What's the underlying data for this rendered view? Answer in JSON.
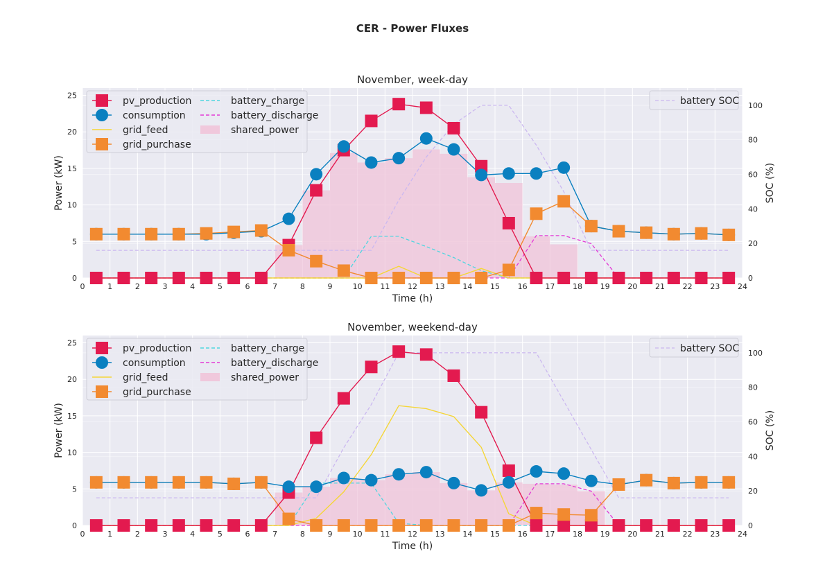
{
  "figure": {
    "suptitle": "CER - Power Fluxes"
  },
  "colors": {
    "pv_production": "#e31a4f",
    "consumption": "#0a80c0",
    "grid_feed": "#f5d637",
    "grid_purchase": "#f28a30",
    "battery_charge": "#4fd6e0",
    "battery_discharge": "#e33ad6",
    "shared_power": "#f0c8dc",
    "battery_soc": "#cbb8f0",
    "panel_bg": "#eaeaf2",
    "grid": "#ffffff"
  },
  "chart_data": [
    {
      "type": "line",
      "title": "November, week-day",
      "xlabel": "Time (h)",
      "ylabel": "Power (kW)",
      "y2label": "SOC (%)",
      "xlim": [
        0,
        24
      ],
      "ylim": [
        0,
        26
      ],
      "y2lim": [
        0,
        110
      ],
      "xticks": [
        "0",
        "1",
        "2",
        "3",
        "4",
        "5",
        "6",
        "7",
        "8",
        "9",
        "10",
        "11",
        "12",
        "13",
        "14",
        "15",
        "16",
        "17",
        "18",
        "19",
        "20",
        "21",
        "22",
        "23",
        "24"
      ],
      "yticks": [
        "0",
        "5",
        "10",
        "15",
        "20",
        "25"
      ],
      "y2ticks": [
        "0",
        "20",
        "40",
        "60",
        "80",
        "100"
      ],
      "grid": true,
      "legend_position": "top-left",
      "legend2_position": "top-right",
      "x": [
        0.5,
        1.5,
        2.5,
        3.5,
        4.5,
        5.5,
        6.5,
        7.5,
        8.5,
        9.5,
        10.5,
        11.5,
        12.5,
        13.5,
        14.5,
        15.5,
        16.5,
        17.5,
        18.5,
        19.5,
        20.5,
        21.5,
        22.5,
        23.5
      ],
      "series": [
        {
          "name": "pv_production",
          "style": "line+square",
          "values": [
            0,
            0,
            0,
            0,
            0,
            0,
            0,
            4.5,
            12.0,
            17.5,
            21.5,
            23.8,
            23.3,
            20.5,
            15.3,
            7.5,
            0,
            0,
            0,
            0,
            0,
            0,
            0,
            0
          ]
        },
        {
          "name": "consumption",
          "style": "line+circle",
          "values": [
            6.0,
            6.0,
            6.0,
            6.0,
            6.0,
            6.2,
            6.4,
            8.1,
            14.2,
            18.0,
            15.8,
            16.4,
            19.1,
            17.6,
            14.1,
            14.3,
            14.3,
            15.1,
            7.1,
            6.4,
            6.2,
            6.0,
            6.1,
            5.9
          ]
        },
        {
          "name": "grid_feed",
          "style": "line",
          "values": [
            0,
            0,
            0,
            0,
            0,
            0,
            0,
            0,
            0,
            0,
            0,
            1.6,
            0,
            0,
            1.3,
            0,
            0,
            0,
            0,
            0,
            0,
            0,
            0,
            0
          ]
        },
        {
          "name": "grid_purchase",
          "style": "line+square",
          "values": [
            6.0,
            6.0,
            6.0,
            6.0,
            6.1,
            6.3,
            6.5,
            3.8,
            2.3,
            1.0,
            0,
            0,
            0,
            0,
            0,
            1.1,
            8.8,
            10.5,
            7.1,
            6.4,
            6.2,
            6.0,
            6.1,
            5.9
          ]
        },
        {
          "name": "battery_charge",
          "style": "dashed",
          "values": [
            0,
            0,
            0,
            0,
            0,
            0,
            0,
            0,
            0,
            0,
            5.7,
            5.7,
            4.3,
            2.8,
            1.0,
            0,
            0,
            0,
            0,
            0,
            0,
            0,
            0,
            0
          ]
        },
        {
          "name": "battery_discharge",
          "style": "dashed",
          "values": [
            0,
            0,
            0,
            0,
            0,
            0,
            0,
            0,
            0,
            0,
            0,
            0,
            0,
            0,
            0,
            0,
            5.8,
            5.8,
            4.7,
            0,
            0,
            0,
            0,
            0
          ]
        },
        {
          "name": "shared_power",
          "style": "bar",
          "values": [
            0,
            0,
            0,
            0,
            0,
            0,
            0,
            4.5,
            12.0,
            17.1,
            15.8,
            16.4,
            17.6,
            17.0,
            13.8,
            13.0,
            5.7,
            4.6,
            0,
            0,
            0,
            0,
            0,
            0
          ]
        },
        {
          "name": "battery SOC",
          "style": "dashed",
          "axis": "right",
          "values": [
            16,
            16,
            16,
            16,
            16,
            16,
            16,
            16,
            16,
            16,
            16,
            45,
            70,
            89,
            100,
            100,
            77,
            50,
            16,
            16,
            16,
            16,
            16,
            16
          ]
        }
      ]
    },
    {
      "type": "line",
      "title": "November, weekend-day",
      "xlabel": "Time (h)",
      "ylabel": "Power (kW)",
      "y2label": "SOC (%)",
      "xlim": [
        0,
        24
      ],
      "ylim": [
        0,
        26
      ],
      "y2lim": [
        0,
        110
      ],
      "xticks": [
        "0",
        "1",
        "2",
        "3",
        "4",
        "5",
        "6",
        "7",
        "8",
        "9",
        "10",
        "11",
        "12",
        "13",
        "14",
        "15",
        "16",
        "17",
        "18",
        "19",
        "20",
        "21",
        "22",
        "23",
        "24"
      ],
      "yticks": [
        "0",
        "5",
        "10",
        "15",
        "20",
        "25"
      ],
      "y2ticks": [
        "0",
        "20",
        "40",
        "60",
        "80",
        "100"
      ],
      "grid": true,
      "legend_position": "top-left",
      "legend2_position": "top-right",
      "x": [
        0.5,
        1.5,
        2.5,
        3.5,
        4.5,
        5.5,
        6.5,
        7.5,
        8.5,
        9.5,
        10.5,
        11.5,
        12.5,
        13.5,
        14.5,
        15.5,
        16.5,
        17.5,
        18.5,
        19.5,
        20.5,
        21.5,
        22.5,
        23.5
      ],
      "series": [
        {
          "name": "pv_production",
          "style": "line+square",
          "values": [
            0,
            0,
            0,
            0,
            0,
            0,
            0,
            4.5,
            12.0,
            17.4,
            21.7,
            23.8,
            23.4,
            20.5,
            15.5,
            7.5,
            0,
            0,
            0,
            0,
            0,
            0,
            0,
            0
          ]
        },
        {
          "name": "consumption",
          "style": "line+circle",
          "values": [
            5.9,
            5.9,
            5.9,
            5.9,
            5.9,
            5.7,
            5.9,
            5.3,
            5.3,
            6.5,
            6.2,
            7.0,
            7.3,
            5.8,
            4.8,
            5.9,
            7.4,
            7.1,
            6.1,
            5.6,
            6.2,
            5.8,
            5.9,
            5.9
          ]
        },
        {
          "name": "grid_feed",
          "style": "line",
          "values": [
            0,
            0,
            0,
            0,
            0,
            0,
            0,
            0,
            1.0,
            4.6,
            9.7,
            16.4,
            16.0,
            14.9,
            10.7,
            1.6,
            0,
            0,
            0,
            0,
            0,
            0,
            0,
            0
          ]
        },
        {
          "name": "grid_purchase",
          "style": "line+square",
          "values": [
            5.9,
            5.9,
            5.9,
            5.9,
            5.9,
            5.7,
            5.9,
            0.9,
            0,
            0,
            0,
            0,
            0,
            0,
            0,
            0,
            1.7,
            1.5,
            1.4,
            5.6,
            6.2,
            5.8,
            5.9,
            5.9
          ]
        },
        {
          "name": "battery_charge",
          "style": "dashed",
          "values": [
            0,
            0,
            0,
            0,
            0,
            0,
            0,
            0,
            5.8,
            5.8,
            5.8,
            0.3,
            0,
            0,
            0,
            0,
            0,
            0,
            0,
            0,
            0,
            0,
            0,
            0
          ]
        },
        {
          "name": "battery_discharge",
          "style": "dashed",
          "values": [
            0,
            0,
            0,
            0,
            0,
            0,
            0,
            0,
            0,
            0,
            0,
            0,
            0,
            0,
            0,
            0,
            5.7,
            5.7,
            4.7,
            0,
            0,
            0,
            0,
            0
          ]
        },
        {
          "name": "shared_power",
          "style": "bar",
          "values": [
            0,
            0,
            0,
            0,
            0,
            0,
            0,
            4.5,
            5.3,
            6.5,
            6.2,
            7.0,
            7.3,
            5.8,
            4.8,
            5.9,
            5.7,
            5.6,
            4.7,
            0,
            0,
            0,
            0,
            0
          ]
        },
        {
          "name": "battery SOC",
          "style": "dashed",
          "axis": "right",
          "values": [
            16,
            16,
            16,
            16,
            16,
            16,
            16,
            16,
            16,
            45,
            70,
            100,
            100,
            100,
            100,
            100,
            100,
            72,
            44,
            16,
            16,
            16,
            16,
            16
          ]
        }
      ]
    }
  ]
}
